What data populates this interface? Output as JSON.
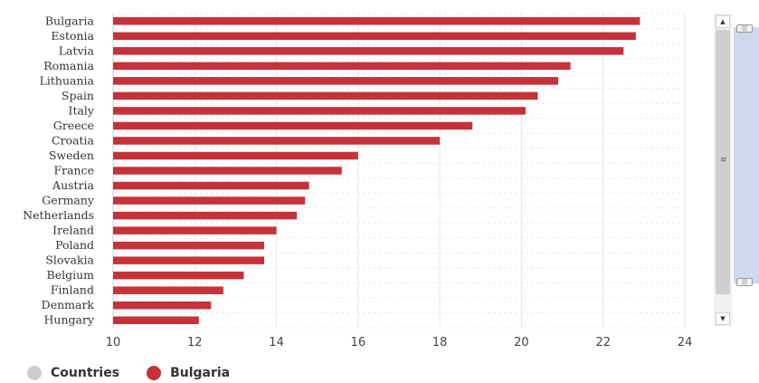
{
  "chart_data": {
    "type": "bar",
    "orientation": "horizontal",
    "categories": [
      "Bulgaria",
      "Estonia",
      "Latvia",
      "Romania",
      "Lithuania",
      "Spain",
      "Italy",
      "Greece",
      "Croatia",
      "Sweden",
      "France",
      "Austria",
      "Germany",
      "Netherlands",
      "Ireland",
      "Poland",
      "Slovakia",
      "Belgium",
      "Finland",
      "Denmark",
      "Hungary"
    ],
    "values": [
      22.9,
      22.8,
      22.5,
      21.2,
      20.9,
      20.4,
      20.1,
      18.8,
      18.0,
      16.0,
      15.6,
      14.8,
      14.7,
      14.5,
      14.0,
      13.7,
      13.7,
      13.2,
      12.7,
      12.4,
      12.1
    ],
    "x_ticks": [
      "10",
      "12",
      "14",
      "16",
      "18",
      "20",
      "22",
      "24"
    ],
    "xlim": [
      10,
      24
    ],
    "grid": "vertical",
    "bar_color": "#c6323a",
    "legend": {
      "position": "bottom-left",
      "items": [
        {
          "label": "Countries",
          "color": "#cccccc"
        },
        {
          "label": "Bulgaria",
          "color": "#c6323a"
        }
      ]
    }
  },
  "scrollbar": {
    "up_arrow_icon": "caret-up",
    "down_arrow_icon": "caret-down",
    "grip_icon": "grip-lines"
  }
}
